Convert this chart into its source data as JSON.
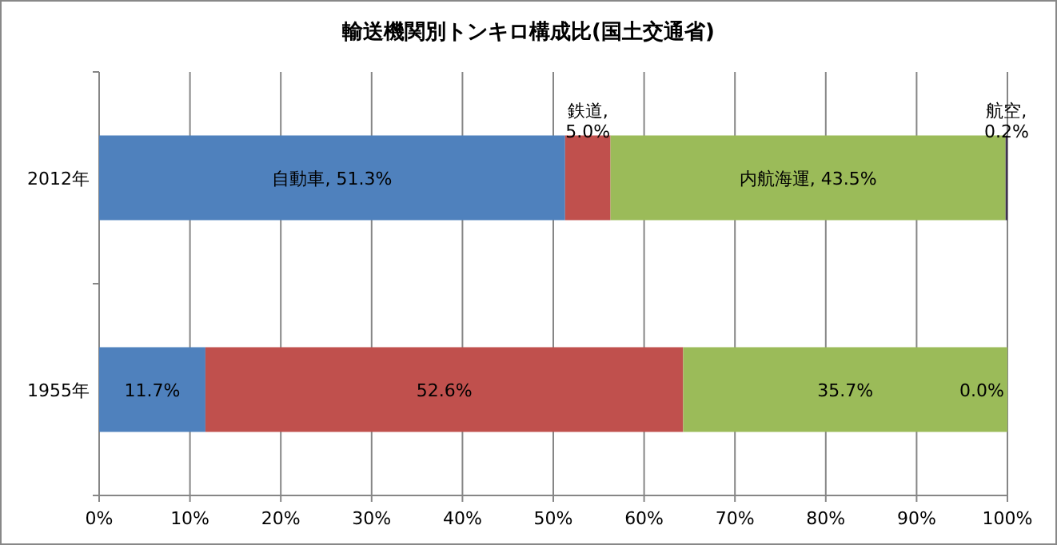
{
  "chart_data": {
    "type": "bar",
    "orientation": "horizontal",
    "stacked": true,
    "title": "輸送機関別トンキロ構成比(国土交通省)",
    "categories": [
      "2012年",
      "1955年"
    ],
    "series": [
      {
        "color": "#4f81bd",
        "values": [
          51.3,
          11.7
        ],
        "value_labels": [
          "自動車, 51.3%",
          "11.7%"
        ]
      },
      {
        "color": "#c0504d",
        "values": [
          5.0,
          52.6
        ],
        "value_labels": [
          "鉄道, 5.0%",
          "52.6%"
        ]
      },
      {
        "color": "#9bbb59",
        "values": [
          43.5,
          35.7
        ],
        "value_labels": [
          "内航海運, 43.5%",
          "35.7%"
        ]
      },
      {
        "color": "#403152",
        "values": [
          0.2,
          0.0
        ],
        "value_labels": [
          "航空, 0.2%",
          "0.0%"
        ]
      }
    ],
    "xlim": [
      0,
      100
    ],
    "xticks": [
      {
        "value": 0,
        "label": "0%"
      },
      {
        "value": 10,
        "label": "10%"
      },
      {
        "value": 20,
        "label": "20%"
      },
      {
        "value": 30,
        "label": "30%"
      },
      {
        "value": 40,
        "label": "40%"
      },
      {
        "value": 50,
        "label": "50%"
      },
      {
        "value": 60,
        "label": "60%"
      },
      {
        "value": 70,
        "label": "70%"
      },
      {
        "value": 80,
        "label": "80%"
      },
      {
        "value": 90,
        "label": "90%"
      },
      {
        "value": 100,
        "label": "100%"
      }
    ],
    "grid": "x"
  }
}
